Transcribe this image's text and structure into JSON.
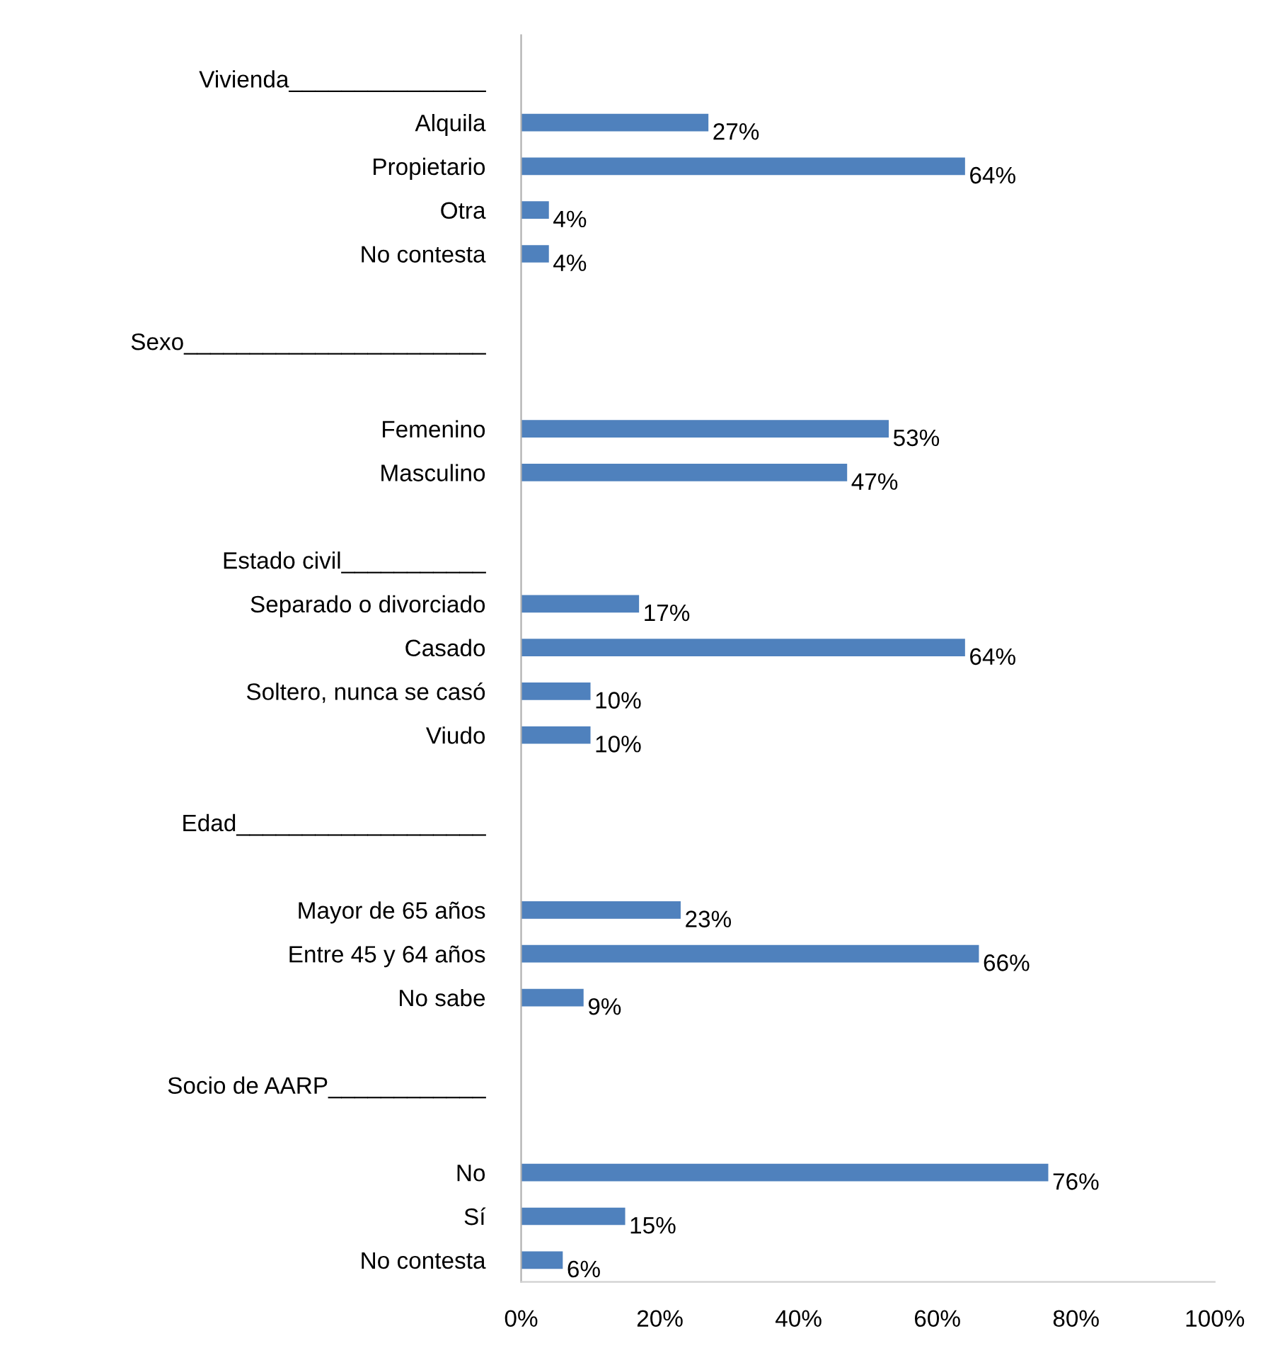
{
  "chart_data": {
    "type": "bar",
    "orientation": "horizontal",
    "color": "#4f81bd",
    "categories": [
      "Vivienda_______________",
      "Alquila",
      "Propietario",
      "Otra",
      "No contesta",
      null,
      "Sexo_______________________",
      null,
      "Femenino",
      "Masculino",
      null,
      "Estado civil___________",
      "Separado o divorciado",
      "Casado",
      "Soltero, nunca se casó",
      "Viudo",
      null,
      "Edad___________________",
      null,
      "Mayor de 65 años",
      "Entre 45 y 64 años",
      "No sabe",
      null,
      "Socio de AARP____________",
      null,
      "No",
      "Sí",
      "No contesta"
    ],
    "values": [
      null,
      27,
      64,
      4,
      4,
      null,
      null,
      null,
      53,
      47,
      null,
      null,
      17,
      64,
      10,
      10,
      null,
      null,
      null,
      23,
      66,
      9,
      null,
      null,
      null,
      76,
      15,
      6
    ],
    "value_labels": [
      null,
      "27%",
      "64%",
      "4%",
      "4%",
      null,
      null,
      null,
      "53%",
      "47%",
      null,
      null,
      "17%",
      "64%",
      "10%",
      "10%",
      null,
      null,
      null,
      "23%",
      "66%",
      "9%",
      null,
      null,
      null,
      "76%",
      "15%",
      "6%"
    ],
    "xlim": [
      0,
      100
    ],
    "xticks": [
      {
        "value": 0,
        "label": "0%"
      },
      {
        "value": 20,
        "label": "20%"
      },
      {
        "value": 40,
        "label": "40%"
      },
      {
        "value": 60,
        "label": "60%"
      },
      {
        "value": 80,
        "label": "80%"
      },
      {
        "value": 100,
        "label": "100%"
      }
    ],
    "grid": false,
    "legend": false
  }
}
